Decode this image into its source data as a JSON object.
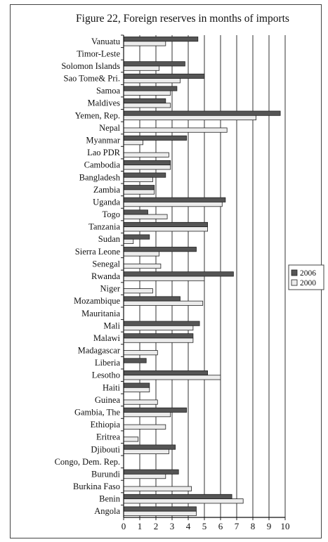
{
  "chart_data": {
    "type": "bar",
    "orientation": "horizontal",
    "title": "Figure 22, Foreign reserves in months of imports",
    "xlabel": "",
    "ylabel": "",
    "xlim": [
      0,
      10
    ],
    "xticks": [
      "0",
      "1",
      "2",
      "3",
      "4",
      "5",
      "6",
      "7",
      "8",
      "9",
      "10"
    ],
    "grid": "vertical",
    "legend_position": "right",
    "colors": {
      "2006": "#555555",
      "2000": "#ececec",
      "edge": "#222222"
    },
    "categories": [
      "Vanuatu",
      "Timor-Leste",
      "Solomon Islands",
      "Sao Tome& Pri.",
      "Samoa",
      "Maldives",
      "Yemen, Rep.",
      "Nepal",
      "Myanmar",
      "Lao PDR",
      "Cambodia",
      "Bangladesh",
      "Zambia",
      "Uganda",
      "Togo",
      "Tanzania",
      "Sudan",
      "Sierra Leone",
      "Senegal",
      "Rwanda",
      "Niger",
      "Mozambique",
      "Mauritania",
      "Mali",
      "Malawi",
      "Madagascar",
      "Liberia",
      "Lesotho",
      "Haiti",
      "Guinea",
      "Gambia, The",
      "Ethiopia",
      "Eritrea",
      "Djibouti",
      "Congo, Dem. Rep.",
      "Burundi",
      "Burkina Faso",
      "Benin",
      "Angola"
    ],
    "series": [
      {
        "name": "2006",
        "values": [
          4.6,
          0,
          3.8,
          5.0,
          3.3,
          2.6,
          9.7,
          0,
          3.9,
          0,
          2.9,
          2.6,
          1.9,
          6.3,
          1.5,
          5.2,
          1.6,
          4.5,
          0,
          6.8,
          0,
          3.5,
          0,
          4.7,
          4.3,
          0,
          1.4,
          5.2,
          1.6,
          0,
          3.9,
          0,
          0,
          3.2,
          0,
          3.4,
          0,
          6.7,
          4.5
        ]
      },
      {
        "name": "2000",
        "values": [
          2.6,
          0,
          2.2,
          3.5,
          2.9,
          2.9,
          8.2,
          6.4,
          1.2,
          2.8,
          2.9,
          1.8,
          1.9,
          6.1,
          2.7,
          5.2,
          0.6,
          2.2,
          2.3,
          5.0,
          1.8,
          4.9,
          0,
          4.3,
          4.3,
          2.1,
          0,
          6.0,
          1.6,
          2.1,
          2.9,
          2.6,
          0.9,
          2.8,
          0,
          2.6,
          4.2,
          7.4,
          4.5
        ]
      }
    ]
  }
}
